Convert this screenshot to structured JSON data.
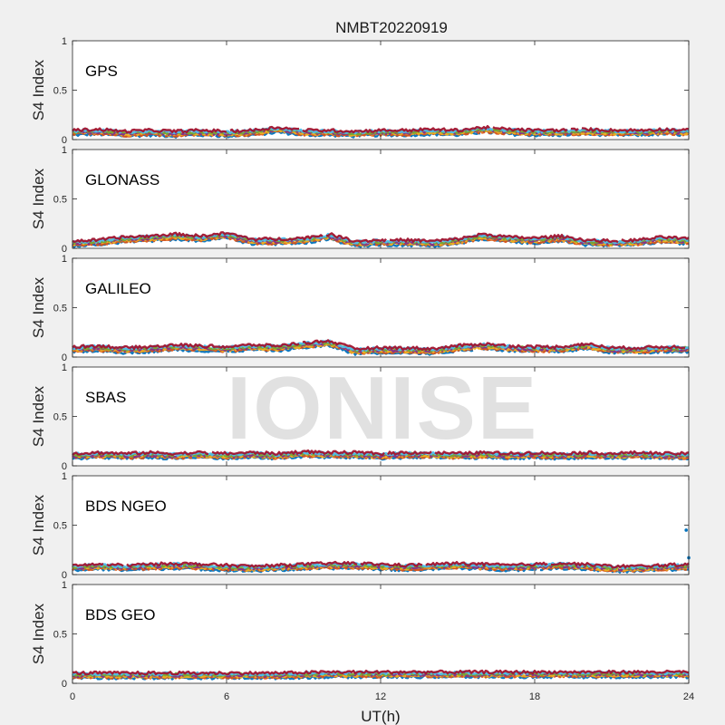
{
  "chart_data": {
    "type": "scatter",
    "title": "NMBT20220919",
    "xlabel": "UT(h)",
    "ylabel": "S4 Index",
    "xlim": [
      0,
      24
    ],
    "ylim": [
      0,
      1
    ],
    "xticks": [
      "0",
      "6",
      "12",
      "18",
      "24"
    ],
    "yticks": [
      "0",
      "0.5",
      "1"
    ],
    "watermark": "IONISE",
    "series_colors": [
      "#0072bd",
      "#d95319",
      "#edb120",
      "#7e2f8e",
      "#77ac30",
      "#4dbeee",
      "#a2142f"
    ],
    "panels": [
      {
        "label": "GPS",
        "typical_s4": [
          [
            0,
            0.07
          ],
          [
            1,
            0.08
          ],
          [
            2,
            0.06
          ],
          [
            3,
            0.07
          ],
          [
            4,
            0.06
          ],
          [
            5,
            0.07
          ],
          [
            6,
            0.06
          ],
          [
            7,
            0.07
          ],
          [
            8,
            0.1
          ],
          [
            9,
            0.07
          ],
          [
            10,
            0.07
          ],
          [
            11,
            0.06
          ],
          [
            12,
            0.07
          ],
          [
            13,
            0.07
          ],
          [
            14,
            0.08
          ],
          [
            15,
            0.07
          ],
          [
            16,
            0.1
          ],
          [
            17,
            0.08
          ],
          [
            18,
            0.07
          ],
          [
            19,
            0.07
          ],
          [
            20,
            0.08
          ],
          [
            21,
            0.07
          ],
          [
            22,
            0.07
          ],
          [
            23,
            0.08
          ],
          [
            24,
            0.07
          ]
        ]
      },
      {
        "label": "GLONASS",
        "typical_s4": [
          [
            0,
            0.05
          ],
          [
            1,
            0.06
          ],
          [
            2,
            0.09
          ],
          [
            3,
            0.1
          ],
          [
            4,
            0.12
          ],
          [
            5,
            0.1
          ],
          [
            6,
            0.13
          ],
          [
            7,
            0.07
          ],
          [
            8,
            0.07
          ],
          [
            9,
            0.08
          ],
          [
            10,
            0.12
          ],
          [
            11,
            0.05
          ],
          [
            12,
            0.06
          ],
          [
            13,
            0.06
          ],
          [
            14,
            0.05
          ],
          [
            15,
            0.07
          ],
          [
            16,
            0.12
          ],
          [
            17,
            0.09
          ],
          [
            18,
            0.08
          ],
          [
            19,
            0.1
          ],
          [
            20,
            0.06
          ],
          [
            21,
            0.05
          ],
          [
            22,
            0.06
          ],
          [
            23,
            0.09
          ],
          [
            24,
            0.07
          ]
        ]
      },
      {
        "label": "GALILEO",
        "typical_s4": [
          [
            0,
            0.08
          ],
          [
            1,
            0.09
          ],
          [
            2,
            0.07
          ],
          [
            3,
            0.08
          ],
          [
            4,
            0.1
          ],
          [
            5,
            0.09
          ],
          [
            6,
            0.08
          ],
          [
            7,
            0.1
          ],
          [
            8,
            0.09
          ],
          [
            9,
            0.12
          ],
          [
            10,
            0.14
          ],
          [
            11,
            0.06
          ],
          [
            12,
            0.07
          ],
          [
            13,
            0.07
          ],
          [
            14,
            0.06
          ],
          [
            15,
            0.09
          ],
          [
            16,
            0.11
          ],
          [
            17,
            0.09
          ],
          [
            18,
            0.08
          ],
          [
            19,
            0.08
          ],
          [
            20,
            0.11
          ],
          [
            21,
            0.07
          ],
          [
            22,
            0.07
          ],
          [
            23,
            0.08
          ],
          [
            24,
            0.08
          ]
        ]
      },
      {
        "label": "SBAS",
        "typical_s4": [
          [
            0,
            0.1
          ],
          [
            1,
            0.11
          ],
          [
            2,
            0.1
          ],
          [
            3,
            0.11
          ],
          [
            4,
            0.1
          ],
          [
            5,
            0.11
          ],
          [
            6,
            0.1
          ],
          [
            7,
            0.11
          ],
          [
            8,
            0.1
          ],
          [
            9,
            0.12
          ],
          [
            10,
            0.11
          ],
          [
            11,
            0.11
          ],
          [
            12,
            0.1
          ],
          [
            13,
            0.11
          ],
          [
            14,
            0.11
          ],
          [
            15,
            0.1
          ],
          [
            16,
            0.11
          ],
          [
            17,
            0.1
          ],
          [
            18,
            0.11
          ],
          [
            19,
            0.1
          ],
          [
            20,
            0.11
          ],
          [
            21,
            0.1
          ],
          [
            22,
            0.11
          ],
          [
            23,
            0.1
          ],
          [
            24,
            0.1
          ]
        ]
      },
      {
        "label": "BDS NGEO",
        "typical_s4": [
          [
            0,
            0.07
          ],
          [
            1,
            0.08
          ],
          [
            2,
            0.07
          ],
          [
            3,
            0.08
          ],
          [
            4,
            0.09
          ],
          [
            5,
            0.08
          ],
          [
            6,
            0.07
          ],
          [
            7,
            0.06
          ],
          [
            8,
            0.07
          ],
          [
            9,
            0.08
          ],
          [
            10,
            0.09
          ],
          [
            11,
            0.09
          ],
          [
            12,
            0.08
          ],
          [
            13,
            0.07
          ],
          [
            14,
            0.08
          ],
          [
            15,
            0.09
          ],
          [
            16,
            0.08
          ],
          [
            17,
            0.07
          ],
          [
            18,
            0.08
          ],
          [
            19,
            0.09
          ],
          [
            20,
            0.08
          ],
          [
            21,
            0.06
          ],
          [
            22,
            0.06
          ],
          [
            23,
            0.07
          ],
          [
            24,
            0.08
          ]
        ],
        "outliers": [
          [
            23.9,
            0.45
          ],
          [
            24,
            0.17
          ]
        ]
      },
      {
        "label": "BDS GEO",
        "typical_s4": [
          [
            0,
            0.08
          ],
          [
            2,
            0.08
          ],
          [
            4,
            0.08
          ],
          [
            6,
            0.08
          ],
          [
            8,
            0.08
          ],
          [
            10,
            0.09
          ],
          [
            12,
            0.09
          ],
          [
            14,
            0.09
          ],
          [
            16,
            0.09
          ],
          [
            18,
            0.09
          ],
          [
            20,
            0.09
          ],
          [
            22,
            0.09
          ],
          [
            24,
            0.09
          ]
        ]
      }
    ]
  }
}
